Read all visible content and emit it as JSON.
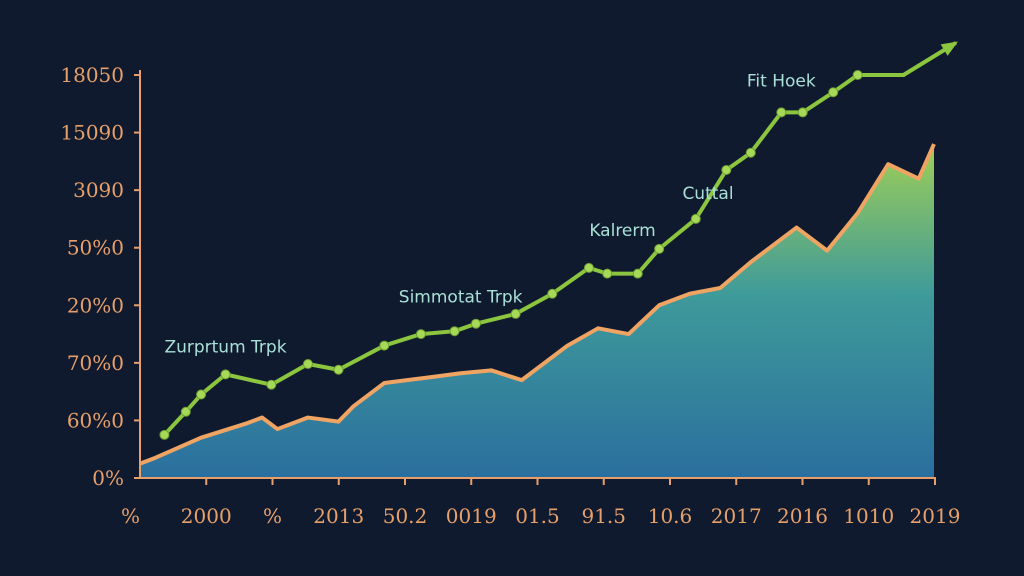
{
  "chart_data": {
    "type": "area",
    "title": "",
    "xlabel": "",
    "ylabel": "",
    "y_tick_labels": [
      "18050",
      "15090",
      "3090",
      "50%0",
      "20%0",
      "70%0",
      "60%0",
      "0%"
    ],
    "x_tick_labels": [
      "%",
      "2000",
      "%",
      "2013",
      "50.2",
      "0019",
      "01.5",
      "91.5",
      "10.6",
      "2017",
      "2016",
      "1010",
      "2019"
    ],
    "ylim": [
      0,
      7
    ],
    "xlim": [
      0,
      26
    ],
    "grid": false,
    "series": [
      {
        "kind": "area",
        "color": "#f0a463",
        "fill_top": "#9fcf55",
        "fill_bottom": "#2a6f9e",
        "x": [
          0,
          0.5,
          2.0,
          3.5,
          4.0,
          4.5,
          5.5,
          6.5,
          7.0,
          8.0,
          9.5,
          10.5,
          11.5,
          12.5,
          14.0,
          15.0,
          16.0,
          17.0,
          18.0,
          19.0,
          20.0,
          21.5,
          22.5,
          23.5,
          24.5,
          25.5,
          26.0
        ],
        "y": [
          0.25,
          0.35,
          0.7,
          0.95,
          1.05,
          0.85,
          1.05,
          0.98,
          1.25,
          1.65,
          1.75,
          1.82,
          1.87,
          1.7,
          2.3,
          2.6,
          2.5,
          3.0,
          3.2,
          3.3,
          3.75,
          4.35,
          3.95,
          4.6,
          5.45,
          5.2,
          5.8
        ]
      },
      {
        "kind": "line",
        "color": "#8cc63f",
        "x": [
          0.8,
          1.5,
          2.0,
          2.8,
          4.3,
          5.5,
          6.5,
          8.0,
          9.2,
          10.3,
          11.0,
          12.3,
          13.5,
          14.7,
          15.3,
          16.3,
          17.0,
          18.2,
          19.2,
          20.0,
          21.0,
          21.7,
          22.7,
          23.5,
          25.0
        ],
        "y": [
          0.75,
          1.15,
          1.45,
          1.8,
          1.62,
          1.98,
          1.88,
          2.3,
          2.5,
          2.55,
          2.68,
          2.85,
          3.2,
          3.65,
          3.55,
          3.55,
          3.98,
          4.5,
          5.35,
          5.65,
          6.35,
          6.35,
          6.7,
          7.0,
          7.0
        ],
        "arrow": true
      }
    ],
    "annotations": [
      {
        "text": "Zurprtum Trpk",
        "x": 2.8,
        "y": 2.18
      },
      {
        "text": "Simmotat Trpk",
        "x": 10.5,
        "y": 3.05
      },
      {
        "text": "Kalrerm",
        "x": 15.8,
        "y": 4.2
      },
      {
        "text": "Cuttal",
        "x": 18.6,
        "y": 4.85
      },
      {
        "text": "Fit Hoek",
        "x": 21.0,
        "y": 6.8
      }
    ]
  }
}
